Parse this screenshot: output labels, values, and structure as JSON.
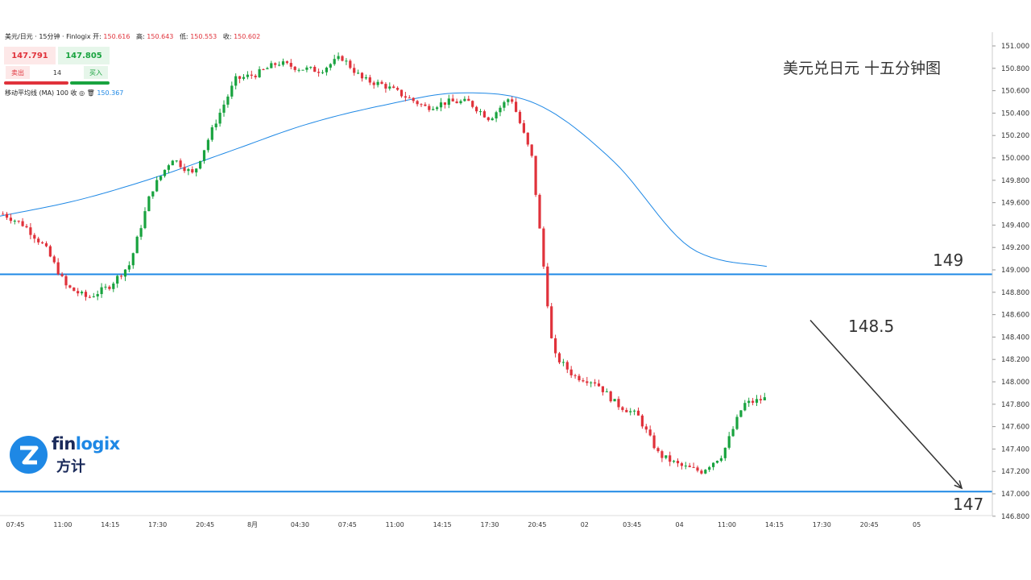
{
  "header": {
    "symbol": "美元/日元 · 15分钟 · Finlogix",
    "open_label": "开:",
    "open": "150.616",
    "high_label": "高:",
    "high": "150.643",
    "low_label": "低:",
    "low": "150.553",
    "close_label": "收:",
    "close": "150.602"
  },
  "quote": {
    "sell_price": "147.791",
    "buy_price": "147.805",
    "sell_label": "卖出",
    "buy_label": "买入",
    "spread": "14"
  },
  "ma_legend": {
    "label": "移动平均线 (MA)",
    "params": "100 收",
    "value": "150.367"
  },
  "logo": {
    "en_1": "fin",
    "en_2": "logix",
    "zh": "方计"
  },
  "colors": {
    "up": "#19a33f",
    "down": "#e0323b",
    "ma": "#1e88e5",
    "level": "#1e88e5",
    "arrow": "#333333"
  },
  "chart_data": {
    "type": "candlestick",
    "title": "美元兑日元 十五分钟图",
    "y_ticks": [
      "151.000",
      "150.800",
      "150.600",
      "150.400",
      "150.200",
      "150.000",
      "149.800",
      "149.600",
      "149.400",
      "149.200",
      "149.000",
      "148.800",
      "148.600",
      "148.400",
      "148.200",
      "148.000",
      "147.800",
      "147.600",
      "147.400",
      "147.200",
      "147.000",
      "146.800"
    ],
    "ylim": [
      146.8,
      151.05
    ],
    "x_ticks": [
      "07:45",
      "11:00",
      "14:15",
      "17:30",
      "20:45",
      "8月",
      "04:30",
      "07:45",
      "11:00",
      "14:15",
      "17:30",
      "20:45",
      "02",
      "03:45",
      "04",
      "11:00",
      "14:15",
      "17:30",
      "20:45",
      "05"
    ],
    "levels": [
      {
        "value": 148.96,
        "label": "149"
      },
      {
        "value": 147.02,
        "label": "147"
      }
    ],
    "projection": {
      "label": "148.5",
      "from_price": 148.55,
      "to_price": 147.05
    },
    "ma_period": 100,
    "ma_curve": [
      149.48,
      149.62,
      149.82,
      150.06,
      150.3,
      150.47,
      150.58,
      150.48,
      149.97,
      149.2,
      149.03
    ],
    "price_path": [
      149.5,
      149.4,
      149.2,
      148.85,
      148.75,
      148.85,
      149.05,
      149.7,
      150.0,
      149.85,
      150.3,
      150.7,
      150.75,
      150.85,
      150.8,
      150.78,
      150.9,
      150.7,
      150.65,
      150.55,
      150.45,
      150.5,
      150.5,
      150.35,
      150.55,
      150.0,
      148.25,
      148.05,
      148.0,
      147.8,
      147.7,
      147.35,
      147.25,
      147.2,
      147.35,
      147.8,
      147.85
    ]
  }
}
